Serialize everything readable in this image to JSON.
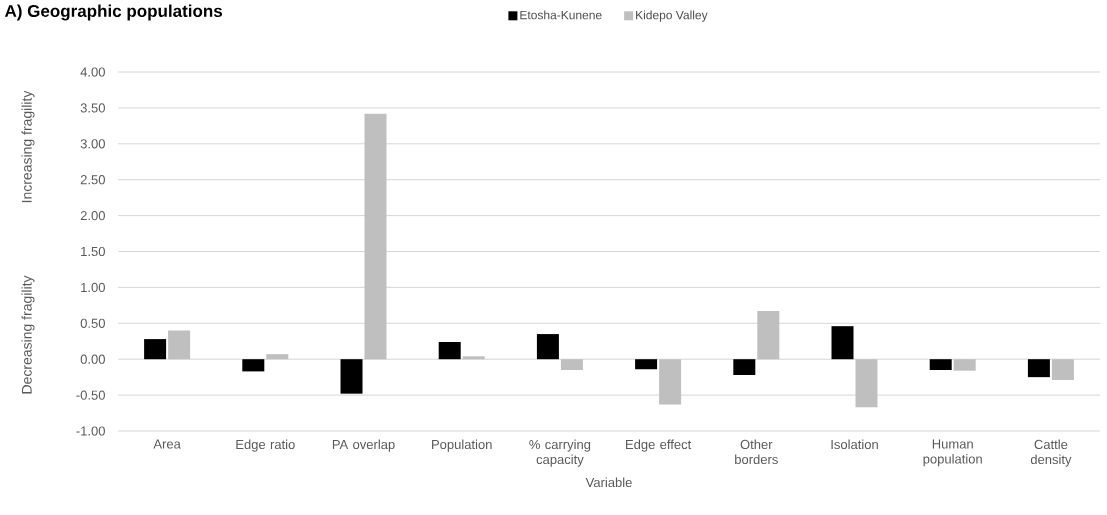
{
  "chart_data": {
    "type": "bar",
    "title": "A) Geographic populations",
    "xlabel": "Variable",
    "ylabel": "Increasing fragility",
    "annotations": [
      "Decreasing fragility"
    ],
    "categories": [
      "Area",
      "Edge ratio",
      "PA overlap",
      "Population",
      "% carrying capacity",
      "Edge effect",
      "Other borders",
      "Isolation",
      "Human population",
      "Cattle density"
    ],
    "series": [
      {
        "name": "Etosha-Kunene",
        "color": "#000000",
        "values": [
          0.28,
          -0.17,
          -0.48,
          0.24,
          0.35,
          -0.14,
          -0.22,
          0.46,
          -0.15,
          -0.25
        ]
      },
      {
        "name": "Kidepo Valley",
        "color": "#bfbfbf",
        "values": [
          0.4,
          0.07,
          3.42,
          0.04,
          -0.15,
          -0.63,
          0.67,
          -0.67,
          -0.16,
          -0.29
        ]
      }
    ],
    "ylim": [
      -1,
      4
    ],
    "yticks": [
      {
        "value": -1,
        "label": "-1.00"
      },
      {
        "value": -0.5,
        "label": "-0.50"
      },
      {
        "value": 0,
        "label": "0.00"
      },
      {
        "value": 0.5,
        "label": "0.50"
      },
      {
        "value": 1,
        "label": "1.00"
      },
      {
        "value": 1.5,
        "label": "1.50"
      },
      {
        "value": 2,
        "label": "2.00"
      },
      {
        "value": 2.5,
        "label": "2.50"
      },
      {
        "value": 3,
        "label": "3.00"
      },
      {
        "value": 3.5,
        "label": "3.50"
      },
      {
        "value": 4,
        "label": "4.00"
      }
    ],
    "grid": "y",
    "legend": "top"
  }
}
